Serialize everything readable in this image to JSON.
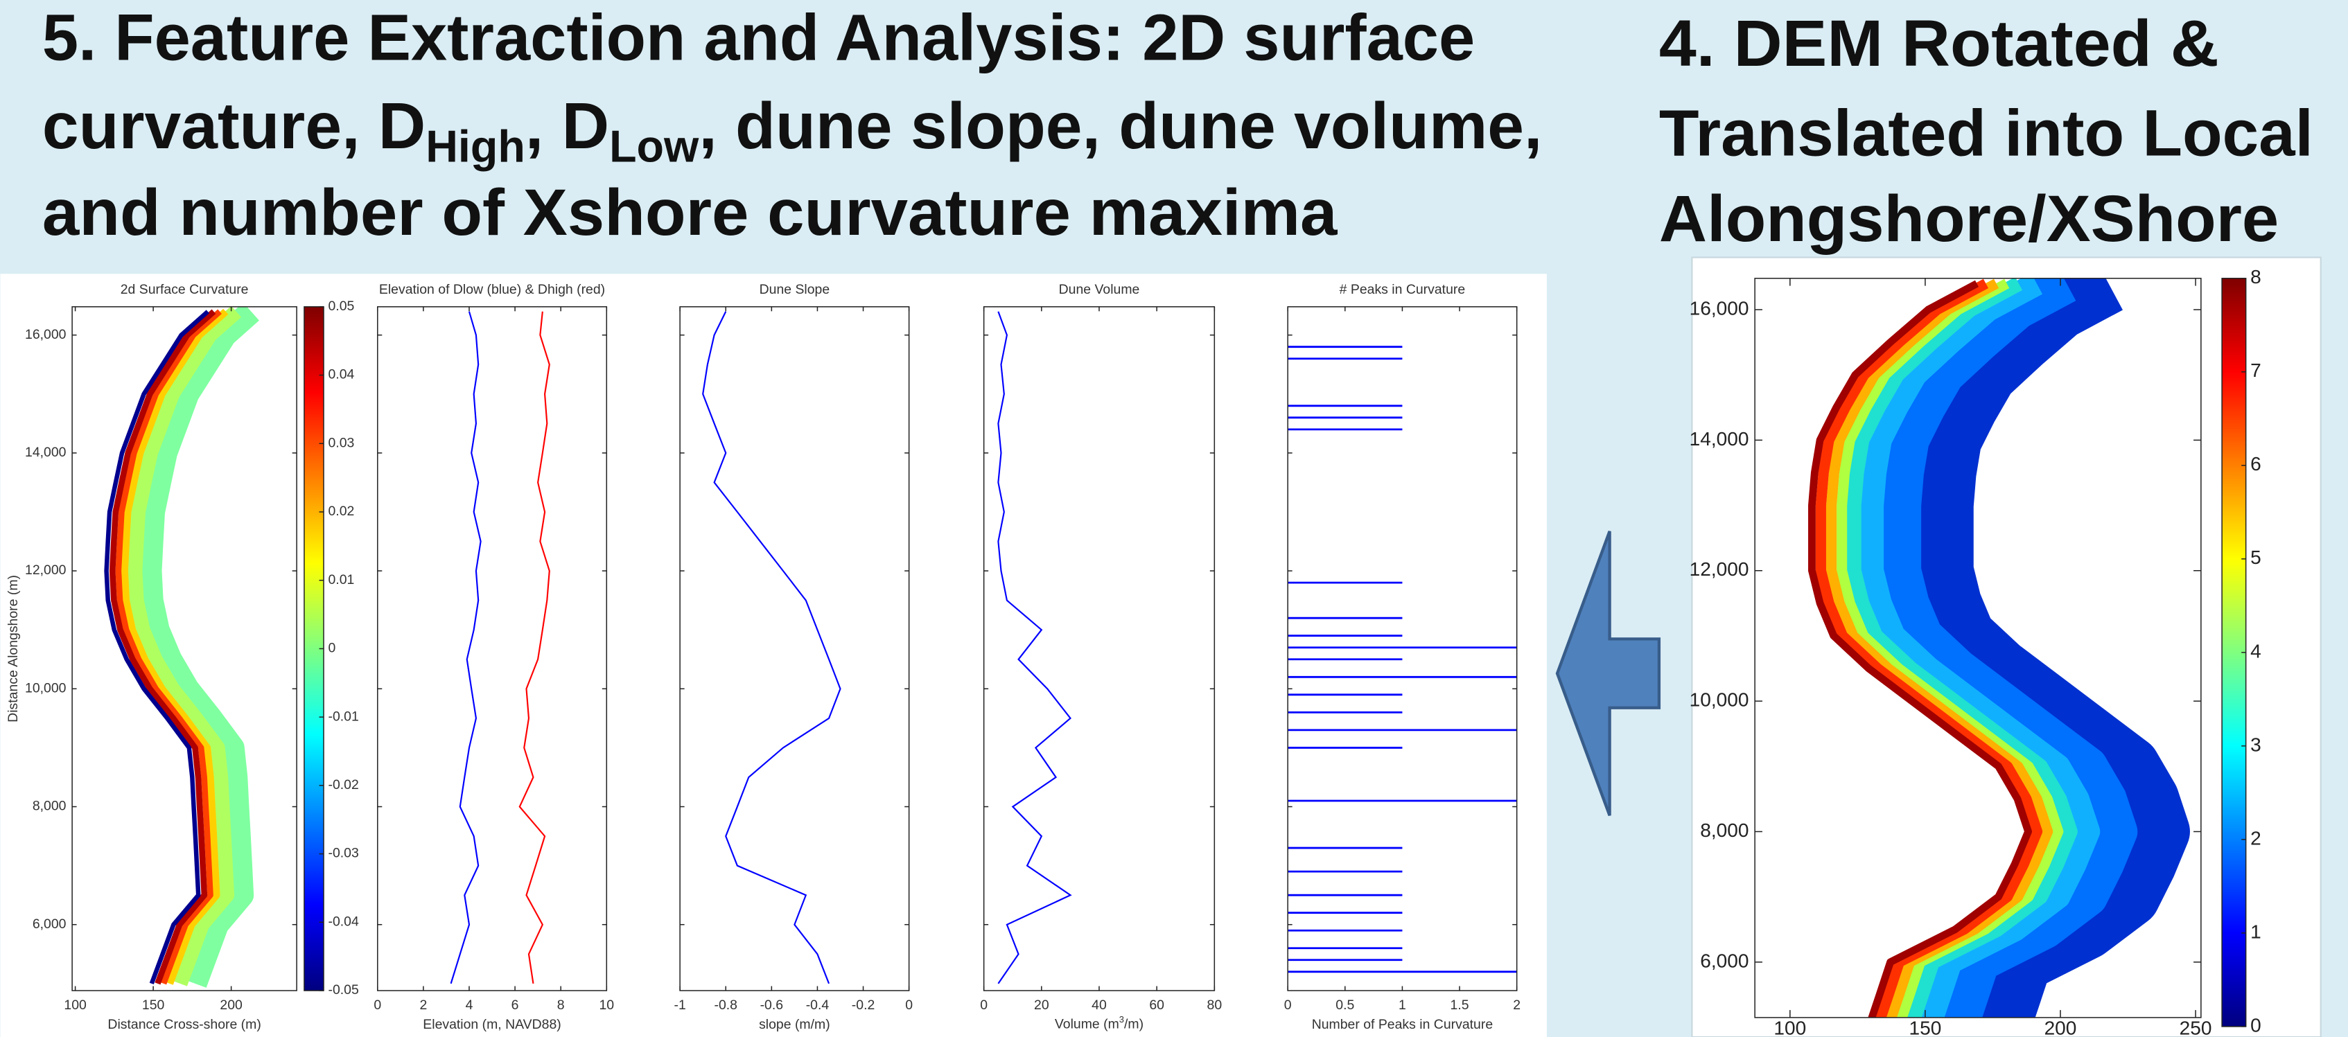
{
  "slide": {
    "left_title": [
      "5. Feature Extraction and Analysis: 2D surface",
      [
        "curvature, D",
        "High",
        ", D",
        "Low",
        ", dune slope, dune volume,"
      ],
      "and number of Xshore curvature maxima"
    ],
    "right_title": [
      "4. DEM Rotated &",
      "Translated into Local",
      "Alongshore/XShore"
    ]
  },
  "chart_data": [
    {
      "type": "curvature-map",
      "title": "2d Surface Curvature",
      "x_label": "Distance Cross-shore (m)",
      "y_label": "Distance Alongshore (m)",
      "y": [
        5000,
        5500,
        6000,
        6500,
        7000,
        7500,
        8000,
        8500,
        9000,
        9500,
        10000,
        10500,
        11000,
        11500,
        12000,
        12500,
        13000,
        13500,
        14000,
        14500,
        15000,
        15500,
        16000,
        16400
      ],
      "values": [
        148,
        155,
        162,
        178,
        177,
        176,
        175,
        174,
        172,
        158,
        143,
        132,
        124,
        120,
        119,
        120,
        121,
        125,
        129,
        136,
        143,
        155,
        167,
        184
      ],
      "xlim": [
        98,
        242
      ],
      "xticks": [
        100,
        150,
        200
      ],
      "ylim": [
        4880,
        16480
      ],
      "yticks": [
        {
          "value": 6000,
          "label": "6,000"
        },
        {
          "value": 8000,
          "label": "8,000"
        },
        {
          "value": 10000,
          "label": "10,000"
        },
        {
          "value": 12000,
          "label": "12,000"
        },
        {
          "value": 14000,
          "label": "14,000"
        },
        {
          "value": 16000,
          "label": "16,000"
        }
      ],
      "colorbar": {
        "clim": [
          -0.05,
          0.05
        ],
        "ticks": [
          0.05,
          0.04,
          0.03,
          0.02,
          0.01,
          0,
          -0.01,
          -0.02,
          -0.03,
          -0.04,
          -0.05
        ]
      }
    },
    {
      "type": "line",
      "title": "Elevation of Dlow (blue) & Dhigh (red)",
      "x_label": "Elevation (m, NAVD88)",
      "y": [
        5000,
        5500,
        6000,
        6500,
        7000,
        7500,
        8000,
        8500,
        9000,
        9500,
        10000,
        10500,
        11000,
        11500,
        12000,
        12500,
        13000,
        13500,
        14000,
        14500,
        15000,
        15500,
        16000,
        16400
      ],
      "series": [
        {
          "color": "#0000ff",
          "values": [
            3.2,
            3.6,
            4.0,
            3.8,
            4.4,
            4.2,
            3.6,
            3.8,
            4.0,
            4.3,
            4.1,
            3.9,
            4.2,
            4.4,
            4.3,
            4.5,
            4.2,
            4.4,
            4.1,
            4.3,
            4.2,
            4.4,
            4.3,
            4.0
          ]
        },
        {
          "color": "#ff0000",
          "values": [
            6.8,
            6.6,
            7.2,
            6.5,
            6.9,
            7.3,
            6.2,
            6.8,
            6.4,
            6.6,
            6.5,
            7.0,
            7.2,
            7.4,
            7.5,
            7.1,
            7.3,
            7.0,
            7.2,
            7.4,
            7.3,
            7.5,
            7.1,
            7.2
          ]
        }
      ],
      "xlim": [
        0,
        10
      ],
      "xticks": [
        0,
        2,
        4,
        6,
        8,
        10
      ],
      "ylim": [
        4880,
        16480
      ],
      "yticks": [
        6000,
        8000,
        10000,
        12000,
        14000,
        16000
      ],
      "show_ytick_labels": false
    },
    {
      "type": "line",
      "title": "Dune Slope",
      "x_label": "slope (m/m)",
      "y": [
        5000,
        5500,
        6000,
        6500,
        7000,
        7500,
        8000,
        8500,
        9000,
        9500,
        10000,
        10500,
        11000,
        11500,
        12000,
        12500,
        13000,
        13500,
        14000,
        14500,
        15000,
        15500,
        16000,
        16400
      ],
      "series": [
        {
          "color": "#0000ff",
          "values": [
            -0.35,
            -0.4,
            -0.5,
            -0.45,
            -0.75,
            -0.8,
            -0.75,
            -0.7,
            -0.55,
            -0.35,
            -0.3,
            -0.35,
            -0.4,
            -0.45,
            -0.55,
            -0.65,
            -0.75,
            -0.85,
            -0.8,
            -0.85,
            -0.9,
            -0.88,
            -0.85,
            -0.8
          ]
        }
      ],
      "xlim": [
        -1,
        0
      ],
      "xticks": [
        -1,
        -0.8,
        -0.6,
        -0.4,
        -0.2,
        0
      ],
      "ylim": [
        4880,
        16480
      ],
      "yticks": [
        6000,
        8000,
        10000,
        12000,
        14000,
        16000
      ],
      "show_ytick_labels": false
    },
    {
      "type": "line",
      "title": "Dune Volume",
      "x_label": [
        "Volume (m",
        "3",
        "/m)"
      ],
      "y": [
        5000,
        5500,
        6000,
        6500,
        7000,
        7500,
        8000,
        8500,
        9000,
        9500,
        10000,
        10500,
        11000,
        11500,
        12000,
        12500,
        13000,
        13500,
        14000,
        14500,
        15000,
        15500,
        16000,
        16400
      ],
      "series": [
        {
          "color": "#0000ff",
          "values": [
            5,
            12,
            8,
            30,
            15,
            20,
            10,
            25,
            18,
            30,
            22,
            12,
            20,
            8,
            6,
            5,
            7,
            5,
            6,
            5,
            7,
            6,
            8,
            5
          ]
        }
      ],
      "xlim": [
        0,
        80
      ],
      "xticks": [
        0,
        20,
        40,
        60,
        80
      ],
      "ylim": [
        4880,
        16480
      ],
      "yticks": [
        6000,
        8000,
        10000,
        12000,
        14000,
        16000
      ],
      "show_ytick_labels": false
    },
    {
      "type": "hbar",
      "title": "# Peaks in Curvature",
      "x_label": "Number of Peaks in Curvature",
      "color": "#0000ff",
      "y": [
        5200,
        5400,
        5600,
        5900,
        6200,
        6500,
        6900,
        7300,
        8100,
        9000,
        9300,
        9600,
        9900,
        10200,
        10500,
        10700,
        10900,
        11200,
        11800,
        14400,
        14600,
        14800,
        15600,
        15800
      ],
      "values": [
        2,
        1,
        1,
        1,
        1,
        1,
        1,
        1,
        2,
        1,
        2,
        1,
        1,
        2,
        1,
        2,
        1,
        1,
        1,
        1,
        1,
        1,
        1,
        1
      ],
      "xlim": [
        0,
        2
      ],
      "xticks": [
        0,
        0.5,
        1,
        1.5,
        2
      ],
      "ylim": [
        4880,
        16480
      ],
      "yticks": [
        6000,
        8000,
        10000,
        12000,
        14000,
        16000
      ],
      "show_ytick_labels": false
    },
    {
      "type": "elevation-map",
      "y": [
        5000,
        5500,
        6000,
        6500,
        7000,
        7500,
        8000,
        8500,
        9000,
        9500,
        10000,
        10500,
        11000,
        11500,
        12000,
        12500,
        13000,
        13500,
        14000,
        14500,
        15000,
        15500,
        16000,
        16400
      ],
      "values": [
        128,
        132,
        136,
        160,
        176,
        182,
        187,
        183,
        176,
        160,
        144,
        128,
        115,
        110,
        107,
        107,
        107,
        108,
        110,
        116,
        123,
        136,
        150,
        168
      ],
      "xlim": [
        87,
        252
      ],
      "xticks": [
        100,
        150,
        200,
        250
      ],
      "ylim": [
        5150,
        16480
      ],
      "yticks": [
        {
          "value": 6000,
          "label": "6,000"
        },
        {
          "value": 8000,
          "label": "8,000"
        },
        {
          "value": 10000,
          "label": "10,000"
        },
        {
          "value": 12000,
          "label": "12,000"
        },
        {
          "value": 14000,
          "label": "14,000"
        },
        {
          "value": 16000,
          "label": "16,000"
        }
      ],
      "colorbar": {
        "clim": [
          0,
          8
        ],
        "ticks": [
          0,
          1,
          2,
          3,
          4,
          5,
          6,
          7,
          8
        ]
      }
    }
  ]
}
